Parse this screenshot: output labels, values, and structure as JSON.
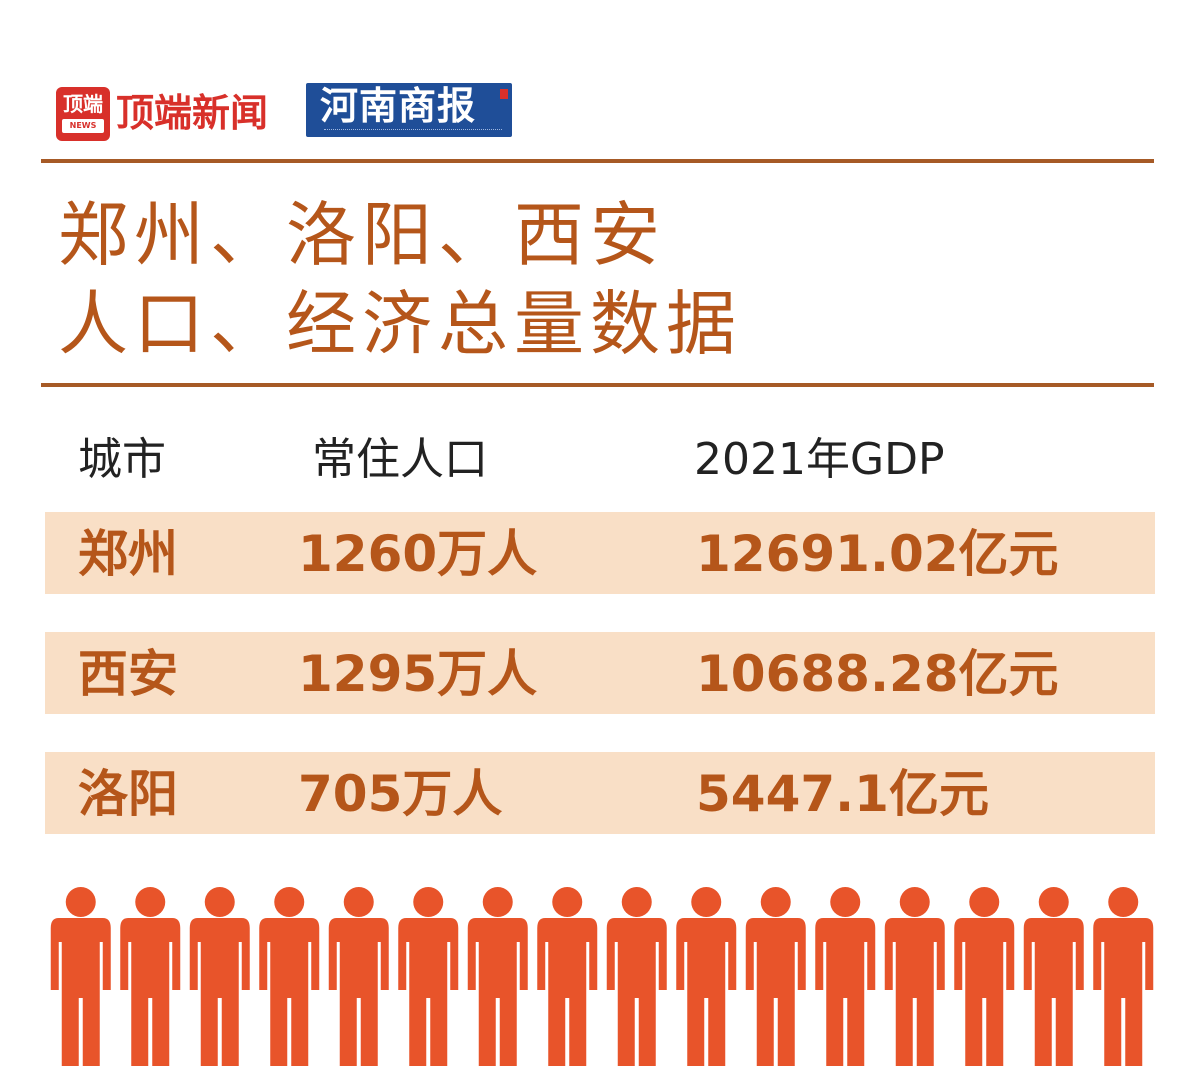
{
  "logos": {
    "dingduan": {
      "badge_text": "顶端",
      "badge_sub": "NEWS",
      "name": "顶端新闻"
    },
    "henan": {
      "name": "河南商报"
    }
  },
  "title": {
    "line1": "郑州、洛阳、西安",
    "line2": "人口、经济总量数据"
  },
  "table": {
    "headers": [
      "城市",
      "常住人口",
      "2021年GDP"
    ],
    "rows": [
      {
        "city": "郑州",
        "population": "1260万人",
        "gdp": "12691.02亿元"
      },
      {
        "city": "西安",
        "population": "1295万人",
        "gdp": "10688.28亿元"
      },
      {
        "city": "洛阳",
        "population": "705万人",
        "gdp": "5447.1亿元"
      }
    ]
  },
  "colors": {
    "title": "#b5561a",
    "rule": "#a65a26",
    "row_bg": "#f9dfc6",
    "person": "#e8542a",
    "logo_red": "#d8302a",
    "logo_blue": "#1f4e98"
  },
  "decoration": {
    "icon": "person-icon",
    "count": 16
  }
}
